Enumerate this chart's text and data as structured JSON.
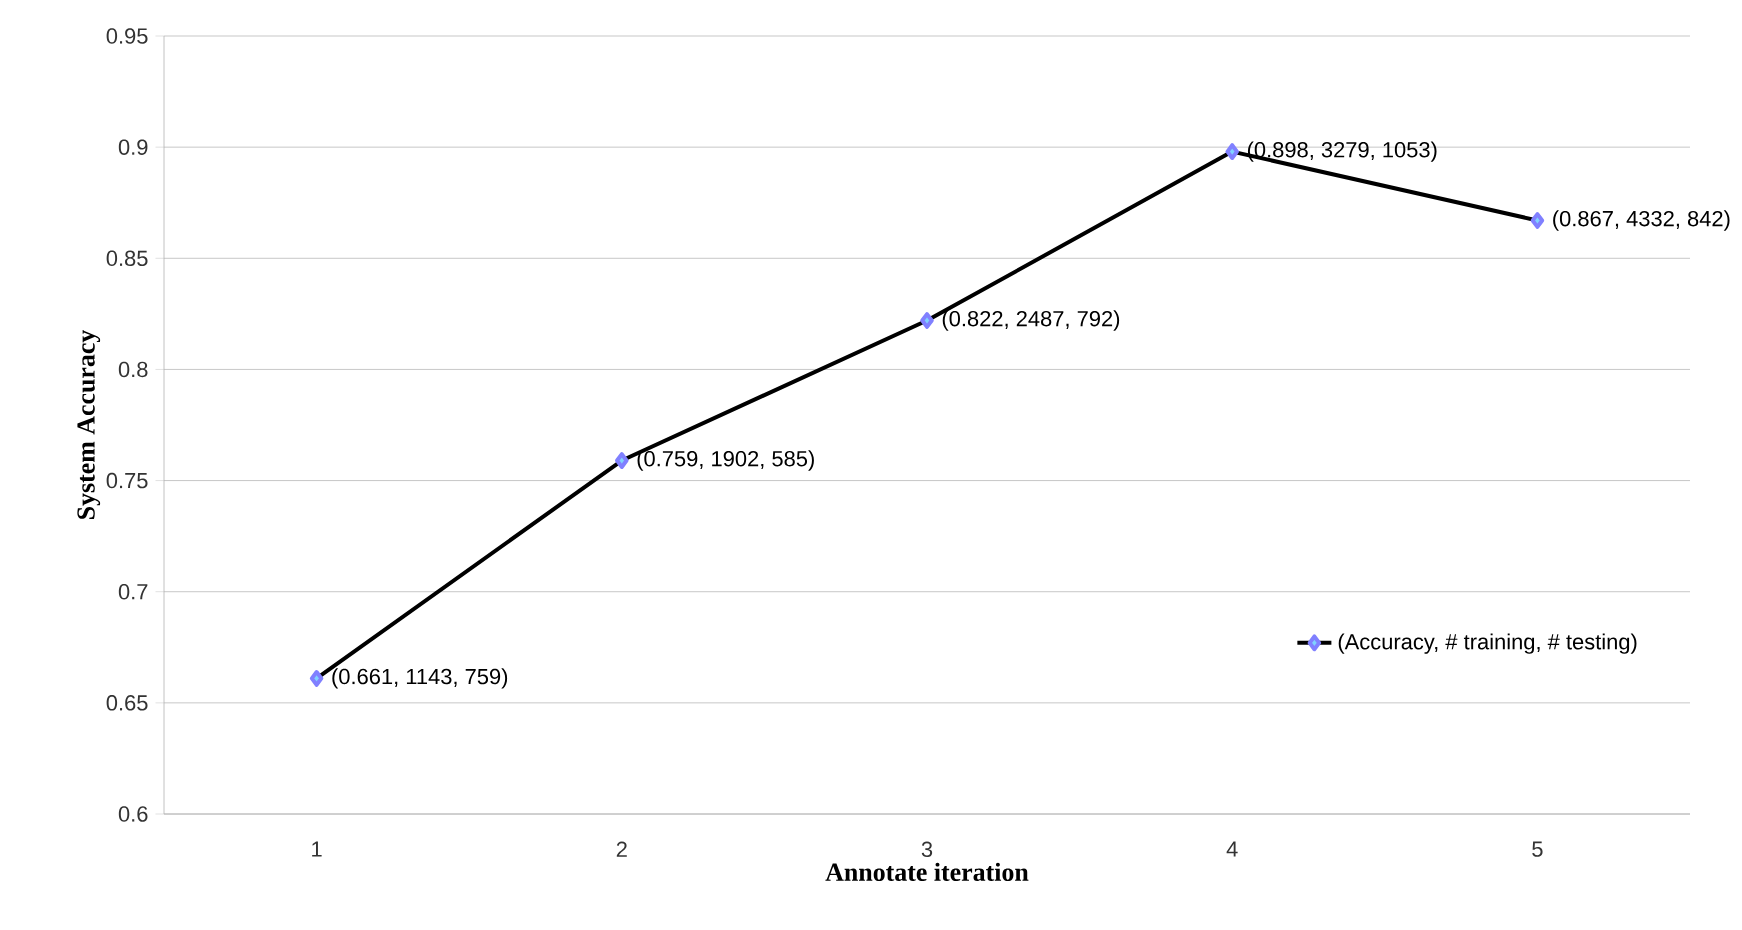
{
  "chart_data": {
    "type": "line",
    "xlabel": "Annotate iteration",
    "ylabel": "System Accuracy",
    "categories": [
      "1",
      "2",
      "3",
      "4",
      "5"
    ],
    "series": [
      {
        "name": "(Accuracy, # training, # testing)",
        "color": "#000000",
        "values": [
          0.661,
          0.759,
          0.822,
          0.898,
          0.867
        ],
        "value_labels": [
          "(0.661, 1143, 759)",
          "(0.759, 1902, 585)",
          "(0.822, 2487, 792)",
          "(0.898, 3279, 1053)",
          "(0.867, 4332, 842)"
        ]
      }
    ],
    "ylim": [
      0.6,
      0.95
    ],
    "yticks": [
      0.6,
      0.65,
      0.7,
      0.75,
      0.8,
      0.85,
      0.9,
      0.95
    ],
    "grid": "y",
    "legend": "right",
    "marker": "diamond",
    "line_style": "solid"
  }
}
